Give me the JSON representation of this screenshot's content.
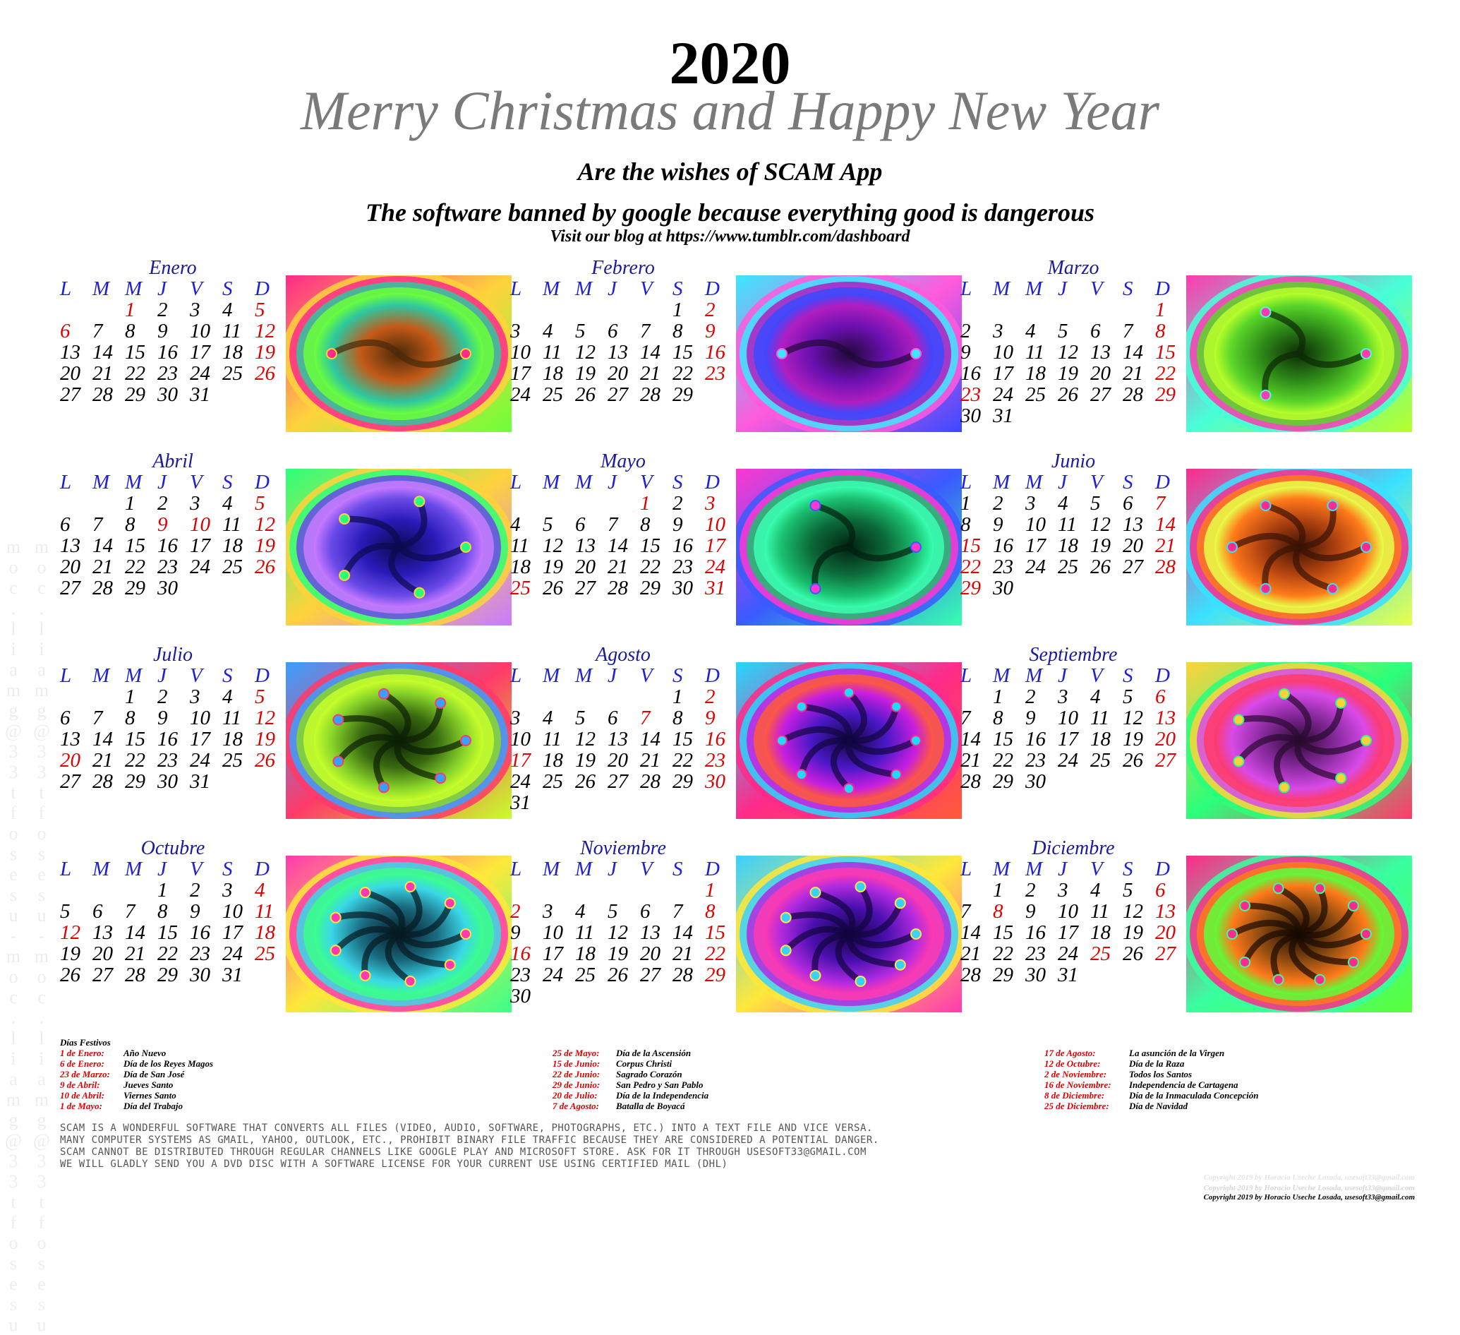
{
  "header": {
    "year": "2020",
    "greeting": "Merry Christmas and Happy New Year",
    "wishes": "Are the wishes of SCAM App",
    "slogan": "The software banned by google because everything good is dangerous",
    "blog": "Visit our blog at https://www.tumblr.com/dashboard"
  },
  "weekdays": [
    "L",
    "M",
    "M",
    "J",
    "V",
    "S",
    "D"
  ],
  "months": [
    {
      "name": "Enero",
      "first": 2,
      "days": 31,
      "red": [
        1,
        5,
        6,
        12,
        19,
        26
      ]
    },
    {
      "name": "Febrero",
      "first": 5,
      "days": 29,
      "red": [
        2,
        9,
        16,
        23
      ]
    },
    {
      "name": "Marzo",
      "first": 6,
      "days": 31,
      "red": [
        1,
        8,
        15,
        22,
        23,
        29
      ]
    },
    {
      "name": "Abril",
      "first": 2,
      "days": 30,
      "red": [
        5,
        9,
        10,
        12,
        19,
        26
      ]
    },
    {
      "name": "Mayo",
      "first": 4,
      "days": 31,
      "red": [
        1,
        3,
        10,
        17,
        24,
        25,
        31
      ]
    },
    {
      "name": "Junio",
      "first": 0,
      "days": 30,
      "red": [
        7,
        14,
        15,
        21,
        22,
        28,
        29
      ]
    },
    {
      "name": "Julio",
      "first": 2,
      "days": 31,
      "red": [
        5,
        12,
        19,
        20,
        26
      ]
    },
    {
      "name": "Agosto",
      "first": 5,
      "days": 31,
      "red": [
        2,
        7,
        9,
        16,
        17,
        23,
        30
      ]
    },
    {
      "name": "Septiembre",
      "first": 1,
      "days": 30,
      "red": [
        6,
        13,
        20,
        27
      ]
    },
    {
      "name": "Octubre",
      "first": 3,
      "days": 31,
      "red": [
        4,
        11,
        12,
        18,
        25
      ]
    },
    {
      "name": "Noviembre",
      "first": 6,
      "days": 30,
      "red": [
        1,
        2,
        8,
        15,
        16,
        22,
        29
      ]
    },
    {
      "name": "Diciembre",
      "first": 1,
      "days": 31,
      "red": [
        6,
        8,
        13,
        20,
        25,
        27
      ]
    }
  ],
  "fractals": [
    {
      "colors": [
        "#ff2a8a",
        "#ffd23c",
        "#6cff3a",
        "#2ec7a0",
        "#c45a18",
        "#4a2a08"
      ],
      "swirls": 2
    },
    {
      "colors": [
        "#38e8ff",
        "#ff5adc",
        "#3a4aff",
        "#b01ec0",
        "#6a10b0",
        "#22083a"
      ],
      "swirls": 2
    },
    {
      "colors": [
        "#ff3ab0",
        "#48ffd8",
        "#b8ff2a",
        "#5ad62a",
        "#2e8a18",
        "#0c2a06"
      ],
      "swirls": 3
    },
    {
      "colors": [
        "#2aff7a",
        "#ffd23c",
        "#c87aff",
        "#6a4ae8",
        "#2a1ab8",
        "#0c0a50"
      ],
      "swirls": 5
    },
    {
      "colors": [
        "#ff38d0",
        "#3a5aff",
        "#38ffb0",
        "#1ac070",
        "#0c6a3a",
        "#022010"
      ],
      "swirls": 3
    },
    {
      "colors": [
        "#ff2a8a",
        "#3ae0ff",
        "#e8ff4a",
        "#ff7a1a",
        "#b04210",
        "#3a1204"
      ],
      "swirls": 6
    },
    {
      "colors": [
        "#38a0ff",
        "#ff3a6a",
        "#c8ff2a",
        "#8ad62a",
        "#3a6a10",
        "#0c2004"
      ],
      "swirls": 7
    },
    {
      "colors": [
        "#22d8ff",
        "#ff2a8a",
        "#ff5a3a",
        "#c81ee0",
        "#4a18c8",
        "#120640"
      ],
      "swirls": 8
    },
    {
      "colors": [
        "#ffd23c",
        "#2aff7a",
        "#ff3a6a",
        "#d84ae8",
        "#8a2aa0",
        "#2a0a30"
      ],
      "swirls": 7
    },
    {
      "colors": [
        "#ff3ab0",
        "#ffe83a",
        "#3aff8a",
        "#3ad8e8",
        "#1a6a80",
        "#061a22"
      ],
      "swirls": 9
    },
    {
      "colors": [
        "#3ad0ff",
        "#ffe83a",
        "#ff3ab0",
        "#b02ae0",
        "#4a10b0",
        "#120440"
      ],
      "swirls": 9
    },
    {
      "colors": [
        "#ff2a8a",
        "#38ffa0",
        "#5aff3a",
        "#ff7a1a",
        "#8a4a10",
        "#1a0a02"
      ],
      "swirls": 10
    }
  ],
  "holidays": {
    "title": "Días Festivos",
    "col1": [
      {
        "date": "1 de Enero:",
        "name": "Año Nuevo"
      },
      {
        "date": "6 de Enero:",
        "name": "Día de los Reyes Magos"
      },
      {
        "date": "23 de Marzo:",
        "name": "Día de San José"
      },
      {
        "date": "9 de Abril:",
        "name": "Jueves Santo"
      },
      {
        "date": "10 de Abril:",
        "name": "Viernes Santo"
      },
      {
        "date": "1 de Mayo:",
        "name": "Día del Trabajo"
      }
    ],
    "col2": [
      {
        "date": "25 de Mayo:",
        "name": "Día de la Ascensión"
      },
      {
        "date": "15 de Junio:",
        "name": "Corpus Christi"
      },
      {
        "date": "22 de Junio:",
        "name": "Sagrado Corazón"
      },
      {
        "date": "29 de Junio:",
        "name": "San Pedro y San Pablo"
      },
      {
        "date": "20 de Julio:",
        "name": "Día de la Independencia"
      },
      {
        "date": "7 de Agosto:",
        "name": "Batalla de Boyacá"
      }
    ],
    "col3": [
      {
        "date": "17 de Agosto:",
        "name": "La asunción de la Virgen"
      },
      {
        "date": "12 de Octubre:",
        "name": "Día de la Raza"
      },
      {
        "date": "2 de Noviembre:",
        "name": "Todos los Santos"
      },
      {
        "date": "16 de Noviembre:",
        "name": "Independencia de Cartagena"
      },
      {
        "date": "8 de Diciembre:",
        "name": "Día de la Inmaculada Concepción"
      },
      {
        "date": "25 de Diciembre:",
        "name": "Día de Navidad"
      }
    ]
  },
  "footer": {
    "line1": "SCAM is a wonderful software that converts all files (video, audio, software, photographs, etc.) into a text file and vice versa.",
    "line2": "Many computer systems as Gmail, Yahoo, Outlook, etc., prohibit binary file traffic because they are considered a potential danger.",
    "line3": "SCAM cannot be distributed through regular channels like Google Play and Microsoft Store.  Ask for it through usesoft33@gmail.com",
    "line4": "We will gladly send you a DVD disc with a software license for your current use using certified mail (DHL)"
  },
  "copyright": "Copyright 2019 by Horacio Useche Losada, usesoft33@gmail.com",
  "side_text": "usesoft33@gmail.com - usesoft33@gmail.com",
  "colors": {
    "weekday": "#1f1fd6",
    "holiday": "#e00000",
    "month_name": "#1a1aa0",
    "greeting": "#7a7a7a"
  }
}
